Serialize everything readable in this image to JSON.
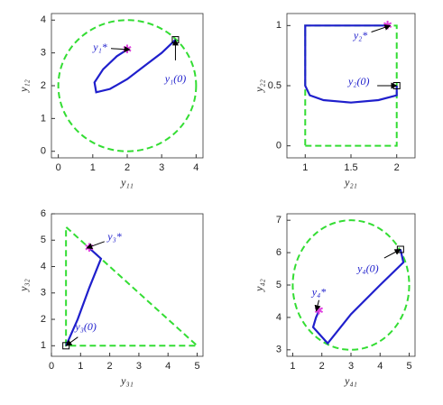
{
  "chart_data": [
    {
      "type": "line",
      "x_label": "y₁₁",
      "y_label": "y₁₂",
      "xlim": [
        -0.2,
        4.2
      ],
      "ylim": [
        -0.2,
        4.2
      ],
      "xticks": [
        0,
        1,
        2,
        3,
        4
      ],
      "yticks": [
        0,
        1,
        2,
        3,
        4
      ],
      "circle": {
        "center": [
          2,
          2
        ],
        "radius": 2,
        "color": "#33dd33"
      },
      "series": [
        {
          "color": "#1f1fcc",
          "x": [
            3.4,
            3.0,
            2.5,
            2.0,
            1.5,
            1.1,
            1.05,
            1.3,
            1.7,
            2.0
          ],
          "values": [
            3.4,
            3.0,
            2.6,
            2.2,
            1.9,
            1.8,
            2.1,
            2.5,
            2.9,
            3.1
          ]
        }
      ],
      "start": [
        3.4,
        3.4
      ],
      "start_label": "y₁(0)",
      "target": [
        2.0,
        3.1
      ],
      "target_label": "y₁*"
    },
    {
      "type": "line",
      "x_label": "y₂₁",
      "y_label": "y₂₂",
      "xlim": [
        0.8,
        2.2
      ],
      "ylim": [
        -0.1,
        1.1
      ],
      "xticks": [
        1,
        1.5,
        2
      ],
      "yticks": [
        0,
        0.5,
        1
      ],
      "polygon": {
        "x": [
          1,
          2,
          2,
          1
        ],
        "y": [
          0,
          0,
          1,
          1
        ],
        "color": "#33dd33"
      },
      "series": [
        {
          "color": "#1f1fcc",
          "x": [
            2,
            2,
            1.8,
            1.5,
            1.2,
            1.05,
            1,
            1,
            1,
            1.5,
            1.9
          ],
          "values": [
            0.5,
            0.42,
            0.38,
            0.36,
            0.38,
            0.42,
            0.5,
            0.8,
            1,
            1,
            1
          ]
        }
      ],
      "start": [
        2,
        0.5
      ],
      "start_label": "y₂(0)",
      "target": [
        1.9,
        1
      ],
      "target_label": "y₂*"
    },
    {
      "type": "line",
      "x_label": "y₃₁",
      "y_label": "y₃₂",
      "xlim": [
        0,
        5.2
      ],
      "ylim": [
        0.6,
        6
      ],
      "xticks": [
        0,
        1,
        2,
        3,
        4,
        5
      ],
      "yticks": [
        1,
        2,
        3,
        4,
        5,
        6
      ],
      "polygon": {
        "x": [
          0.5,
          0.5,
          5
        ],
        "y": [
          1,
          5.5,
          1
        ],
        "color": "#33dd33"
      },
      "series": [
        {
          "color": "#1f1fcc",
          "x": [
            0.5,
            0.9,
            1.3,
            1.7,
            1.3
          ],
          "values": [
            1,
            2,
            3.2,
            4.3,
            4.7
          ]
        }
      ],
      "start": [
        0.5,
        1
      ],
      "start_label": "y₃(0)",
      "target": [
        1.3,
        4.7
      ],
      "target_label": "y₃*"
    },
    {
      "type": "line",
      "x_label": "y₄₁",
      "y_label": "y₄₂",
      "xlim": [
        0.8,
        5.2
      ],
      "ylim": [
        2.8,
        7.2
      ],
      "xticks": [
        1,
        2,
        3,
        4,
        5
      ],
      "yticks": [
        3,
        4,
        5,
        6,
        7
      ],
      "circle": {
        "center": [
          3,
          5
        ],
        "radius": 2,
        "color": "#33dd33"
      },
      "series": [
        {
          "color": "#1f1fcc",
          "x": [
            4.7,
            4.8,
            4.0,
            3.0,
            2.2,
            1.7,
            1.8,
            1.9
          ],
          "values": [
            6.1,
            5.7,
            5.0,
            4.1,
            3.2,
            3.7,
            4.0,
            4.2
          ]
        }
      ],
      "start": [
        4.7,
        6.1
      ],
      "start_label": "y₄(0)",
      "target": [
        1.9,
        4.2
      ],
      "target_label": "y₄*"
    }
  ]
}
